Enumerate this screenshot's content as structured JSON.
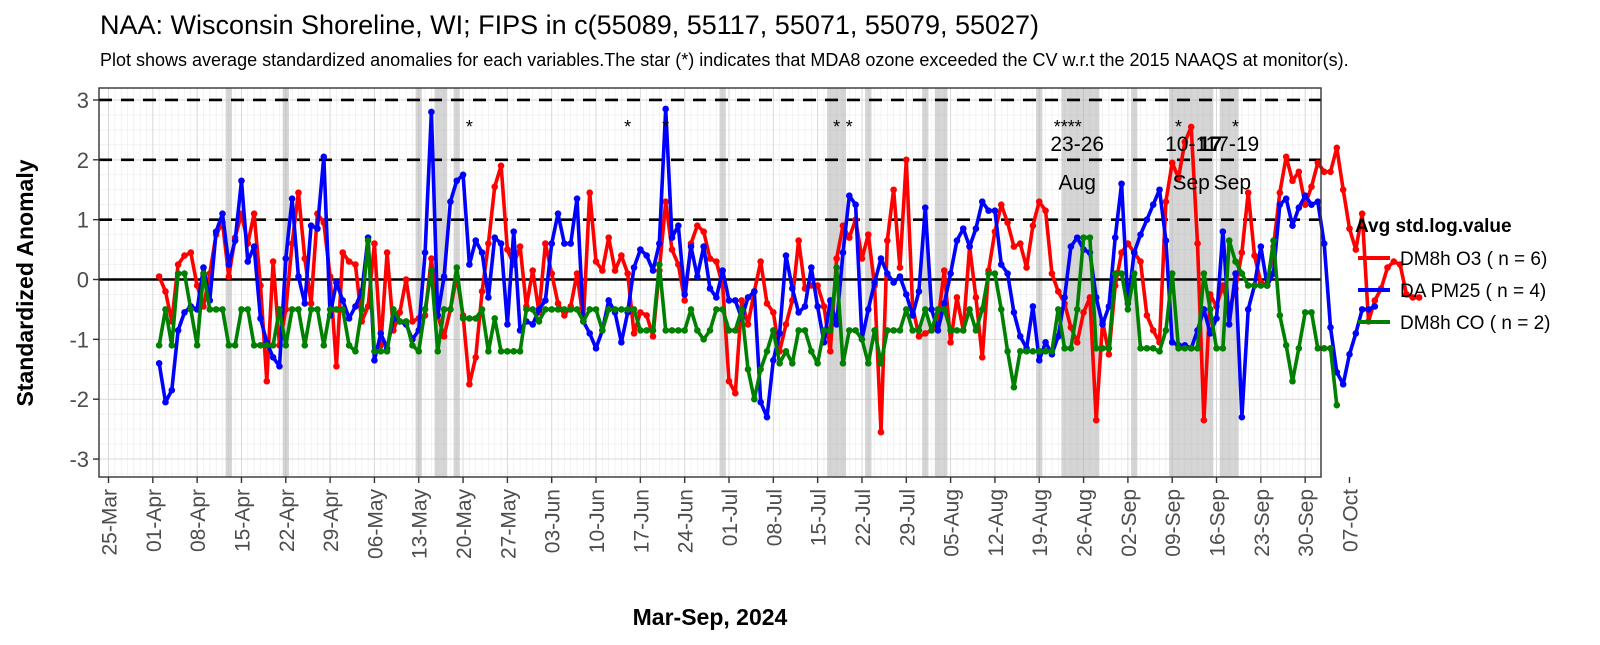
{
  "chart_data": {
    "type": "line",
    "title": "NAA: Wisconsin Shoreline, WI; FIPS in c(55089, 55117, 55071, 55079, 55027)",
    "subtitle": "Plot shows average standardized anomalies for each variables.The star (*) indicates that MDA8 ozone exceeded the CV w.r.t the 2015 NAAQS at monitor(s).",
    "xlabel": "Mar-Sep, 2024",
    "ylabel": "Standardized Anomaly",
    "xlim_day": [
      -3.5,
      189.5
    ],
    "ylim": [
      -3.3,
      3.2
    ],
    "x_unit": "days since 2024-03-28",
    "x_ticks": [
      {
        "day": -2,
        "label": "25-Mar"
      },
      {
        "day": 5,
        "label": "01-Apr"
      },
      {
        "day": 12,
        "label": "08-Apr"
      },
      {
        "day": 19,
        "label": "15-Apr"
      },
      {
        "day": 26,
        "label": "22-Apr"
      },
      {
        "day": 33,
        "label": "29-Apr"
      },
      {
        "day": 40,
        "label": "06-May"
      },
      {
        "day": 47,
        "label": "13-May"
      },
      {
        "day": 54,
        "label": "20-May"
      },
      {
        "day": 61,
        "label": "27-May"
      },
      {
        "day": 68,
        "label": "03-Jun"
      },
      {
        "day": 75,
        "label": "10-Jun"
      },
      {
        "day": 82,
        "label": "17-Jun"
      },
      {
        "day": 89,
        "label": "24-Jun"
      },
      {
        "day": 96,
        "label": "01-Jul"
      },
      {
        "day": 103,
        "label": "08-Jul"
      },
      {
        "day": 110,
        "label": "15-Jul"
      },
      {
        "day": 117,
        "label": "22-Jul"
      },
      {
        "day": 124,
        "label": "29-Jul"
      },
      {
        "day": 131,
        "label": "05-Aug"
      },
      {
        "day": 138,
        "label": "12-Aug"
      },
      {
        "day": 145,
        "label": "19-Aug"
      },
      {
        "day": 152,
        "label": "26-Aug"
      },
      {
        "day": 159,
        "label": "02-Sep"
      },
      {
        "day": 166,
        "label": "09-Sep"
      },
      {
        "day": 173,
        "label": "16-Sep"
      },
      {
        "day": 180,
        "label": "23-Sep"
      },
      {
        "day": 187,
        "label": "30-Sep"
      },
      {
        "day": 194,
        "label": "07-Oct"
      }
    ],
    "y_ticks": [
      -3,
      -2,
      -1,
      0,
      1,
      2,
      3
    ],
    "y_tick_labels": [
      "-3",
      "-2",
      "-1",
      "0",
      "1",
      "2",
      "3"
    ],
    "dashed_lines": [
      1,
      2,
      3
    ],
    "zero_line": 0,
    "shaded_days": [
      17,
      26,
      47,
      50,
      51,
      53,
      95,
      112,
      113,
      114,
      118,
      127,
      129,
      130,
      145,
      149,
      150,
      151,
      152,
      153,
      154,
      160,
      166,
      167,
      168,
      169,
      170,
      171,
      172,
      174,
      175,
      176
    ],
    "legend_title": "Avg std.log.value",
    "series": [
      {
        "name": "DM8h O3 ( n = 6)",
        "color": "#ff0000",
        "start_day": 6,
        "values": [
          0.05,
          -0.2,
          -0.7,
          0.25,
          0.4,
          0.45,
          -0.1,
          -0.45,
          0.1,
          0.75,
          0.95,
          0.05,
          0.7,
          1.1,
          0.6,
          1.1,
          -0.1,
          -1.7,
          0.3,
          -1.1,
          -0.5,
          0.6,
          1.45,
          0.35,
          -0.4,
          1.1,
          0.95,
          0.05,
          -1.45,
          0.45,
          0.3,
          0.25,
          -0.7,
          -0.45,
          0.6,
          -1.1,
          0.45,
          -0.85,
          -0.55,
          0.0,
          -0.7,
          -0.65,
          -0.6,
          0.35,
          -0.6,
          -0.95,
          -0.5,
          0.05,
          -0.6,
          -1.75,
          -1.3,
          -0.2,
          0.6,
          1.55,
          1.9,
          0.5,
          0.25,
          0.55,
          -0.45,
          0.15,
          -0.55,
          0.6,
          0.1,
          -0.4,
          -0.6,
          -0.45,
          0.1,
          -0.7,
          1.45,
          0.3,
          0.15,
          0.7,
          0.15,
          0.4,
          0.1,
          -0.9,
          -0.55,
          -0.6,
          -0.95,
          0.15,
          1.3,
          0.5,
          0.25,
          -0.35,
          0.6,
          0.9,
          0.8,
          0.35,
          0.3,
          -0.1,
          -1.7,
          -1.9,
          -0.35,
          -0.75,
          -0.2,
          0.3,
          -0.4,
          -0.55,
          -1.2,
          -0.75,
          -0.35,
          0.65,
          -0.15,
          -0.1,
          -0.1,
          -0.45,
          -1.2,
          0.35,
          0.9,
          0.7,
          1.0,
          0.35,
          0.75,
          -0.1,
          -2.55,
          0.65,
          1.5,
          0.2,
          2.0,
          -0.45,
          -0.95,
          -0.9,
          -0.85,
          -0.7,
          0.15,
          -1.05,
          -0.3,
          -0.85,
          0.55,
          -0.3,
          -1.3,
          0.15,
          0.8,
          1.25,
          0.95,
          0.55,
          0.6,
          0.2,
          0.9,
          1.3,
          1.15,
          0.1,
          -0.2,
          -0.4,
          -0.8,
          -1.05,
          -0.55,
          -0.3,
          -2.35,
          -0.7,
          -1.25,
          -0.1,
          0.45,
          0.6,
          0.45,
          0.3,
          -0.6,
          -0.85,
          -1.05,
          1.3,
          1.95,
          1.7,
          2.3,
          2.55,
          0.6,
          -2.35,
          -0.25,
          -0.45,
          -0.1,
          -0.5,
          -0.15,
          0.45,
          1.45,
          0.4,
          -0.05,
          -0.1,
          0.55,
          1.45,
          2.05,
          1.65,
          1.8,
          1.25,
          1.55,
          1.95,
          1.8,
          1.8,
          2.2,
          1.5,
          0.85,
          0.5,
          1.1,
          -0.7,
          -0.35,
          -0.15,
          0.2,
          0.3,
          0.25,
          -0.25,
          -0.3,
          -0.3
        ]
      },
      {
        "name": "DA PM25 ( n = 4)",
        "color": "#0000ff",
        "start_day": 6,
        "values": [
          -1.4,
          -2.05,
          -1.85,
          -0.85,
          -0.55,
          -0.45,
          -0.5,
          0.2,
          -0.35,
          0.8,
          1.1,
          0.25,
          0.65,
          1.65,
          0.3,
          0.55,
          -0.65,
          -1.05,
          -1.3,
          -1.45,
          0.35,
          1.35,
          0.05,
          -0.4,
          0.9,
          0.85,
          2.05,
          -0.6,
          -0.05,
          -0.35,
          -0.65,
          -0.45,
          -0.2,
          0.7,
          -1.35,
          -0.9,
          -1.15,
          -0.65,
          -0.7,
          -0.75,
          -1.0,
          -0.85,
          0.45,
          2.8,
          -0.6,
          0.05,
          1.3,
          1.65,
          1.75,
          0.25,
          0.65,
          0.45,
          -0.3,
          0.7,
          0.6,
          -0.75,
          0.8,
          -0.85,
          -0.7,
          -0.75,
          -0.5,
          -0.35,
          0.6,
          1.1,
          0.6,
          0.6,
          1.35,
          -0.7,
          -0.9,
          -1.15,
          -0.85,
          -0.35,
          -0.55,
          -1.05,
          -0.55,
          0.2,
          0.5,
          0.4,
          0.15,
          0.6,
          2.85,
          0.7,
          0.9,
          -0.25,
          0.55,
          0.05,
          0.55,
          -0.15,
          -0.3,
          0.15,
          -0.35,
          -0.35,
          -0.65,
          -0.3,
          -0.2,
          -2.05,
          -2.3,
          -1.35,
          -0.9,
          0.4,
          -0.15,
          -0.55,
          -0.45,
          0.2,
          -0.45,
          -1.05,
          -0.35,
          -0.75,
          0.45,
          1.4,
          1.25,
          -1.0,
          -0.5,
          -0.05,
          0.35,
          0.1,
          -0.05,
          0.05,
          -0.25,
          -0.6,
          -0.2,
          1.2,
          -0.5,
          -0.85,
          -0.4,
          0.1,
          0.65,
          0.85,
          0.55,
          0.85,
          1.3,
          1.15,
          1.15,
          0.25,
          0.1,
          -0.55,
          -0.95,
          -1.15,
          -0.45,
          -1.35,
          -1.05,
          -1.25,
          -0.95,
          -0.3,
          0.55,
          0.7,
          0.5,
          0.45,
          -0.3,
          -0.75,
          -0.45,
          0.7,
          1.6,
          -0.4,
          0.45,
          0.75,
          1.0,
          1.25,
          1.5,
          0.65,
          -1.05,
          -1.1,
          -1.1,
          -1.15,
          -0.85,
          -0.5,
          -0.9,
          -0.65,
          0.8,
          -0.75,
          0.1,
          -2.3,
          -0.5,
          -0.1,
          0.55,
          -0.1,
          0.1,
          1.25,
          1.35,
          0.9,
          1.2,
          1.4,
          1.25,
          1.3,
          0.6,
          -0.8,
          -1.55,
          -1.75,
          -1.25,
          -0.9,
          -0.5,
          -0.5,
          -0.45
        ]
      },
      {
        "name": "DM8h CO ( n = 2)",
        "color": "#008000",
        "start_day": 6,
        "values": [
          -1.1,
          -0.5,
          -1.1,
          0.1,
          0.1,
          -0.5,
          -1.1,
          0.1,
          -0.5,
          -0.5,
          -0.5,
          -1.1,
          -1.1,
          -0.5,
          -0.5,
          -1.1,
          -1.1,
          -1.1,
          -1.1,
          -0.5,
          -1.1,
          -0.5,
          -0.5,
          -1.1,
          -0.5,
          -0.5,
          -1.1,
          -0.5,
          -0.5,
          -0.5,
          -1.1,
          -1.2,
          -0.5,
          0.65,
          -1.2,
          -1.2,
          -1.2,
          -0.5,
          -0.7,
          -0.7,
          -1.1,
          -1.2,
          -0.5,
          0.15,
          -1.2,
          -0.5,
          -0.5,
          0.2,
          -0.65,
          -0.65,
          -0.65,
          -0.5,
          -1.2,
          -0.65,
          -1.2,
          -1.2,
          -1.2,
          -1.2,
          -0.5,
          -0.5,
          -0.7,
          -0.5,
          -0.5,
          -0.5,
          -0.5,
          -0.5,
          -0.5,
          -0.7,
          -0.5,
          -0.5,
          -0.85,
          -0.5,
          -0.5,
          -0.5,
          -0.5,
          -0.5,
          -0.85,
          -0.85,
          -0.85,
          0.25,
          -0.85,
          -0.85,
          -0.85,
          -0.85,
          -0.5,
          -0.85,
          -1.0,
          -0.85,
          -0.5,
          -0.5,
          -0.85,
          -0.85,
          -0.5,
          -1.5,
          -2.0,
          -1.5,
          -1.2,
          -0.85,
          -1.4,
          -1.2,
          -1.4,
          -0.85,
          -0.85,
          -1.2,
          -1.4,
          -0.85,
          -0.85,
          0.2,
          -1.4,
          -0.85,
          -0.85,
          -1.0,
          -1.4,
          -0.85,
          -1.4,
          -0.85,
          -0.85,
          -0.85,
          -0.5,
          -0.85,
          -0.85,
          -0.5,
          -0.85,
          -0.5,
          -0.5,
          -0.85,
          -0.85,
          -0.85,
          -0.5,
          -0.85,
          -0.5,
          0.1,
          0.1,
          -0.5,
          -1.2,
          -1.8,
          -1.2,
          -1.2,
          -1.2,
          -1.2,
          -1.2,
          -1.2,
          -0.5,
          -1.15,
          -1.15,
          -0.5,
          0.7,
          0.7,
          -1.15,
          -1.15,
          -1.15,
          0.1,
          0.1,
          -0.5,
          0.1,
          -1.15,
          -1.15,
          -1.15,
          -1.2,
          -0.85,
          0.1,
          -1.15,
          -1.15,
          -1.15,
          -1.15,
          0.1,
          -0.5,
          -1.15,
          -1.15,
          0.65,
          0.3,
          0.1,
          -0.1,
          -0.1,
          -0.1,
          -0.1,
          0.65,
          -0.6,
          -1.1,
          -1.7,
          -1.15,
          -0.55,
          -0.55,
          -1.15,
          -1.15,
          -1.15,
          -2.1
        ]
      }
    ],
    "star_markers": [
      {
        "day": 55,
        "y": 2.45,
        "text": "*"
      },
      {
        "day": 80,
        "y": 2.45,
        "text": "*"
      },
      {
        "day": 86,
        "y": 2.45,
        "text": "*"
      },
      {
        "day": 113,
        "y": 2.45,
        "text": "*"
      },
      {
        "day": 115,
        "y": 2.45,
        "text": "*"
      },
      {
        "day": 149.5,
        "y": 2.45,
        "text": "****"
      },
      {
        "day": 167,
        "y": 2.45,
        "text": "*"
      },
      {
        "day": 176,
        "y": 2.45,
        "text": "*"
      }
    ],
    "event_annotations": [
      {
        "day": 151,
        "line1": "23-26",
        "line2": "Aug"
      },
      {
        "day": 169,
        "line1": "10-11",
        "line2": "Sep"
      },
      {
        "day": 175.5,
        "line1": "17-19",
        "line2": "Sep"
      },
      {
        "day": 172,
        "line1": "17",
        "line2": "",
        "bold": true
      }
    ]
  }
}
